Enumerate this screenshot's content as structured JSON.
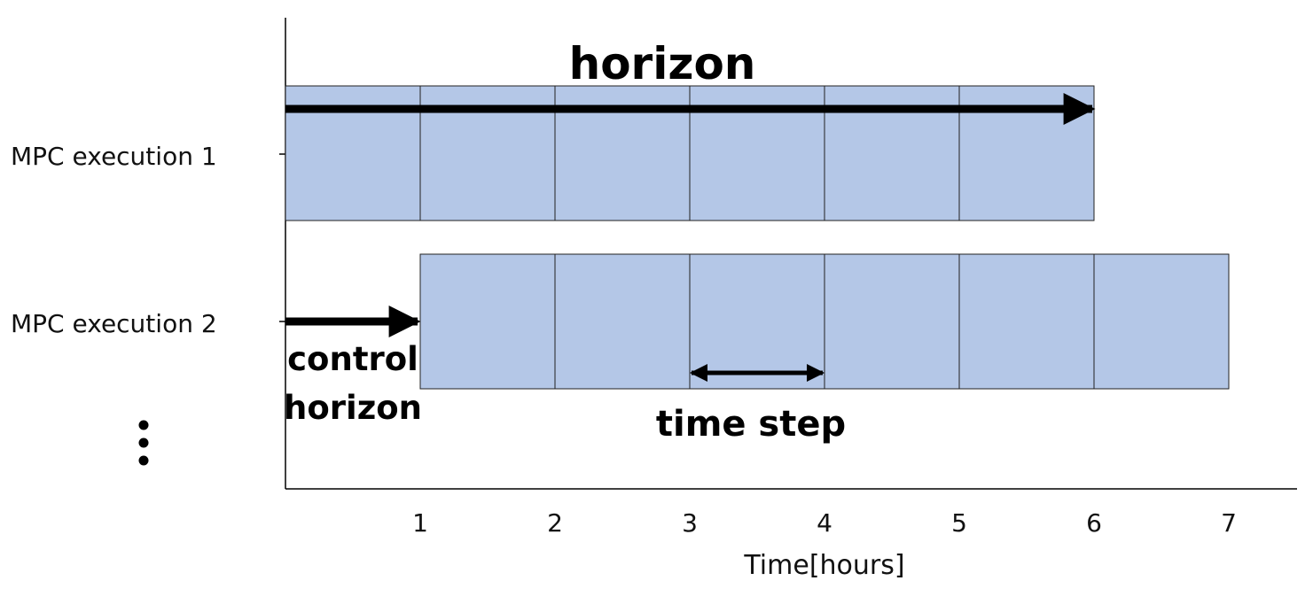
{
  "diagram": {
    "title": "horizon",
    "rows": [
      {
        "label": "MPC execution 1",
        "start": 0,
        "end": 6
      },
      {
        "label": "MPC execution 2",
        "start": 1,
        "end": 7
      }
    ],
    "ellipsis": "⋮",
    "control_horizon": {
      "line1": "control",
      "line2": "horizon"
    },
    "time_step": {
      "label": "time step",
      "from": 3,
      "to": 4
    },
    "x_axis": {
      "title": "Time[hours]",
      "ticks": [
        "1",
        "2",
        "3",
        "4",
        "5",
        "6",
        "7"
      ],
      "range": [
        0,
        7.5
      ]
    },
    "colors": {
      "cell_fill": "#b4c7e7",
      "cell_stroke": "#222222",
      "arrow": "#000000",
      "axis": "#000000"
    }
  }
}
